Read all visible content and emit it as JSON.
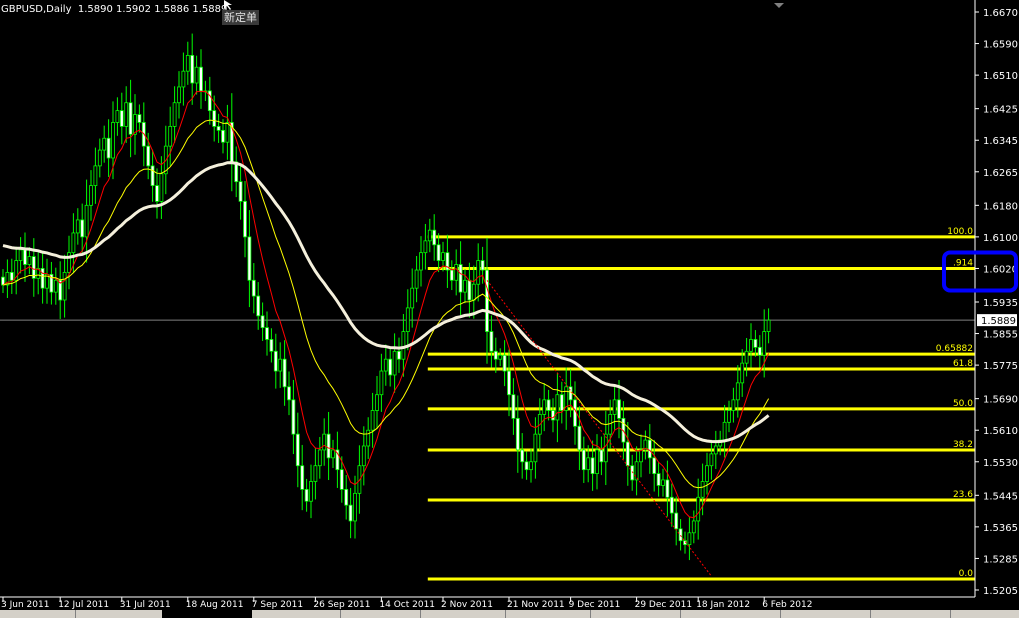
{
  "header": {
    "symbol_label": "GBPUSD,Daily",
    "ohlc_label": "1.5890 1.5902 1.5886 1.5889",
    "order_tag": "新定单"
  },
  "chart_data": {
    "type": "candlestick",
    "title": "GBPUSD,Daily",
    "ylim": [
      1.5205,
      1.667
    ],
    "y_ticks": [
      "1.6670",
      "1.6590",
      "1.6510",
      "1.6425",
      "1.6345",
      "1.6265",
      "1.6180",
      "1.6100",
      "1.6020",
      "1.5935",
      "1.5855",
      "1.5775",
      "1.5690",
      "1.5610",
      "1.5530",
      "1.5445",
      "1.5365",
      "1.5285",
      "1.5205"
    ],
    "x_ticks": [
      {
        "label": "3 Jun 2011",
        "bar": 0
      },
      {
        "label": "12 Jul 2011",
        "bar": 13
      },
      {
        "label": "31 Jul 2011",
        "bar": 27
      },
      {
        "label": "18 Aug 2011",
        "bar": 42
      },
      {
        "label": "7 Sep 2011",
        "bar": 57
      },
      {
        "label": "26 Sep 2011",
        "bar": 71
      },
      {
        "label": "14 Oct 2011",
        "bar": 86
      },
      {
        "label": "2 Nov 2011",
        "bar": 100
      },
      {
        "label": "21 Nov 2011",
        "bar": 115
      },
      {
        "label": "9 Dec 2011",
        "bar": 129
      },
      {
        "label": "29 Dec 2011",
        "bar": 144
      },
      {
        "label": "18 Jan 2012",
        "bar": 158
      },
      {
        "label": "6 Feb 2012",
        "bar": 173
      }
    ],
    "closes": [
      1.5978,
      1.601,
      1.599,
      1.604,
      1.6067,
      1.603,
      1.605,
      1.5995,
      1.602,
      1.597,
      1.6005,
      1.596,
      1.599,
      1.594,
      1.601,
      1.606,
      1.611,
      1.6143,
      1.61,
      1.618,
      1.623,
      1.628,
      1.632,
      1.635,
      1.63,
      1.639,
      1.642,
      1.638,
      1.644,
      1.636,
      1.641,
      1.639,
      1.633,
      1.628,
      1.623,
      1.619,
      1.626,
      1.633,
      1.638,
      1.644,
      1.648,
      1.652,
      1.656,
      1.649,
      1.653,
      1.647,
      1.647,
      1.642,
      1.638,
      1.637,
      1.634,
      1.639,
      1.629,
      1.624,
      1.619,
      1.61,
      1.599,
      1.595,
      1.59,
      1.587,
      1.584,
      1.581,
      1.576,
      1.579,
      1.572,
      1.5687,
      1.56,
      1.552,
      1.546,
      1.543,
      1.548,
      1.552,
      1.556,
      1.56,
      1.554,
      1.556,
      1.551,
      1.546,
      1.542,
      1.538,
      1.545,
      1.552,
      1.557,
      1.561,
      1.566,
      1.57,
      1.576,
      1.579,
      1.575,
      1.581,
      1.579,
      1.586,
      1.592,
      1.597,
      1.6016,
      1.606,
      1.609,
      1.6117,
      1.608,
      1.604,
      1.606,
      1.6016,
      1.599,
      1.603,
      1.596,
      1.599,
      1.594,
      1.598,
      1.604,
      1.6016,
      1.586,
      1.581,
      1.579,
      1.58,
      1.576,
      1.57,
      1.564,
      1.556,
      1.553,
      1.551,
      1.553,
      1.56,
      1.565,
      1.5687,
      1.566,
      1.5636,
      1.57,
      1.566,
      1.572,
      1.5687,
      1.562,
      1.556,
      1.551,
      1.554,
      1.55,
      1.556,
      1.553,
      1.56,
      1.565,
      1.5687,
      1.564,
      1.558,
      1.552,
      1.5484,
      1.553,
      1.556,
      1.5585,
      1.554,
      1.55,
      1.547,
      1.5484,
      1.544,
      1.54,
      1.536,
      1.533,
      1.532,
      1.535,
      1.538,
      1.544,
      1.548,
      1.552,
      1.555,
      1.557,
      1.5585,
      1.563,
      1.566,
      1.5687,
      1.573,
      1.578,
      1.581,
      1.584,
      1.582,
      1.58,
      1.586,
      1.5889
    ],
    "current_price": "1.5889",
    "moving_averages": [
      {
        "type": "EMA",
        "period": 8,
        "color": "#ff0000"
      },
      {
        "type": "EMA",
        "period": 21,
        "color": "#ffff00"
      },
      {
        "type": "EMA",
        "period": 55,
        "color": "#f5f0dc"
      }
    ],
    "fibonacci": {
      "color": "#ffff00",
      "start_bar": 97,
      "levels": [
        {
          "label": "100.0",
          "price": 1.61
        },
        {
          "label": ".914",
          "price": 1.602
        },
        {
          "label": "0.65882",
          "price": 1.5803
        },
        {
          "label": "61.8",
          "price": 1.5765
        },
        {
          "label": "50.0",
          "price": 1.5664
        },
        {
          "label": "38.2",
          "price": 1.556
        },
        {
          "label": "23.6",
          "price": 1.5433
        },
        {
          "label": "0.0",
          "price": 1.5233
        }
      ]
    },
    "trendline": {
      "color": "#ff0000",
      "from": {
        "bar": 110,
        "price": 1.599
      },
      "to": {
        "bar": 161,
        "price": 1.524
      }
    },
    "highlight_price": "1.6020",
    "highlight_color": "#0000ff",
    "candle_colors": {
      "outline": "#00ff00",
      "up_fill": "#000000",
      "down_fill": "#ffffff"
    },
    "grid": false
  }
}
